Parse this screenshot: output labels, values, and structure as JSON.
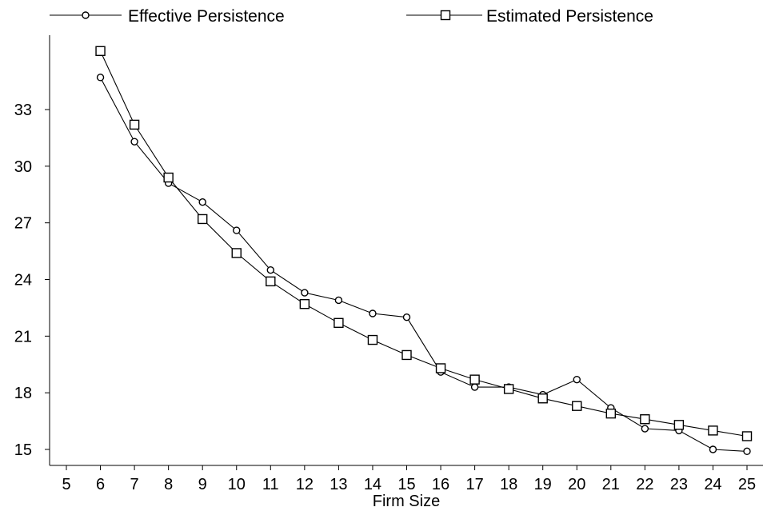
{
  "chart_data": {
    "type": "line",
    "title": "",
    "xlabel": "Firm Size",
    "ylabel": "",
    "xlim": [
      4.5,
      25.5
    ],
    "ylim": [
      14.3,
      37.5
    ],
    "x_ticks": [
      5,
      6,
      7,
      8,
      9,
      10,
      11,
      12,
      13,
      14,
      15,
      16,
      17,
      18,
      19,
      20,
      21,
      22,
      23,
      24,
      25
    ],
    "y_ticks": [
      15,
      18,
      21,
      24,
      27,
      30,
      33
    ],
    "grid": false,
    "legend_position": "top",
    "x": [
      6,
      7,
      8,
      9,
      10,
      11,
      12,
      13,
      14,
      15,
      16,
      17,
      18,
      19,
      20,
      21,
      22,
      23,
      24,
      25
    ],
    "series": [
      {
        "name": "Effective Persistence",
        "marker": "circle",
        "values": [
          34.7,
          31.3,
          29.1,
          28.1,
          26.6,
          24.5,
          23.3,
          22.9,
          22.2,
          22.0,
          19.1,
          18.3,
          18.3,
          17.9,
          18.7,
          17.2,
          16.1,
          16.0,
          15.0,
          14.9
        ]
      },
      {
        "name": "Estimated Persistence",
        "marker": "square",
        "values": [
          36.1,
          32.2,
          29.4,
          27.2,
          25.4,
          23.9,
          22.7,
          21.7,
          20.8,
          20.0,
          19.3,
          18.7,
          18.2,
          17.7,
          17.3,
          16.9,
          16.6,
          16.3,
          16.0,
          15.7
        ]
      }
    ]
  }
}
